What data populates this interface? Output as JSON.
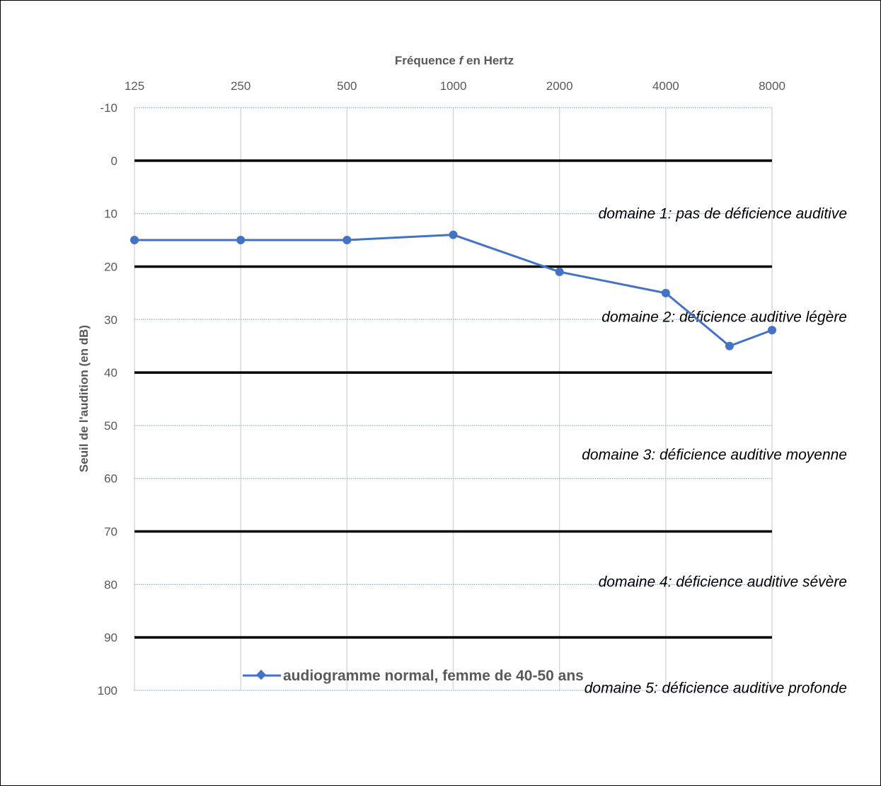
{
  "chart_data": {
    "type": "line",
    "x_title_prefix": "Fréquence ",
    "x_title_var": "f",
    "x_title_suffix": " en Hertz",
    "ylabel": "Seuil de l'audition (en dB)",
    "categories": [
      "125",
      "250",
      "500",
      "1000",
      "2000",
      "4000",
      "8000"
    ],
    "y_ticks": [
      "-10",
      "0",
      "10",
      "20",
      "30",
      "40",
      "50",
      "60",
      "70",
      "80",
      "90",
      "100"
    ],
    "ylim": [
      -10,
      100
    ],
    "y_inverted": true,
    "x_axis_position": "top",
    "grid": true,
    "thresholds": [
      0,
      20,
      40,
      70,
      90
    ],
    "bands": [
      {
        "label": "domaine 1: pas de déficience auditive",
        "y": 10
      },
      {
        "label": "domaine 2: déficience auditive légère",
        "y": 29.5
      },
      {
        "label": "domaine 3: déficience auditive moyenne",
        "y": 55.5
      },
      {
        "label": "domaine 4: déficience auditive sévère",
        "y": 79.5
      },
      {
        "label": "domaine 5: déficience auditive profonde",
        "y": 99.5
      }
    ],
    "series": [
      {
        "name": "audiogramme normal, femme de 40-50 ans",
        "color": "#4472c4",
        "points": [
          {
            "x": 0,
            "y": 15
          },
          {
            "x": 1,
            "y": 15
          },
          {
            "x": 2,
            "y": 15
          },
          {
            "x": 3,
            "y": 14
          },
          {
            "x": 4,
            "y": 21
          },
          {
            "x": 5,
            "y": 25
          },
          {
            "x": 5.6,
            "y": 35
          },
          {
            "x": 6,
            "y": 32
          }
        ]
      }
    ],
    "legend_position": "bottom"
  }
}
